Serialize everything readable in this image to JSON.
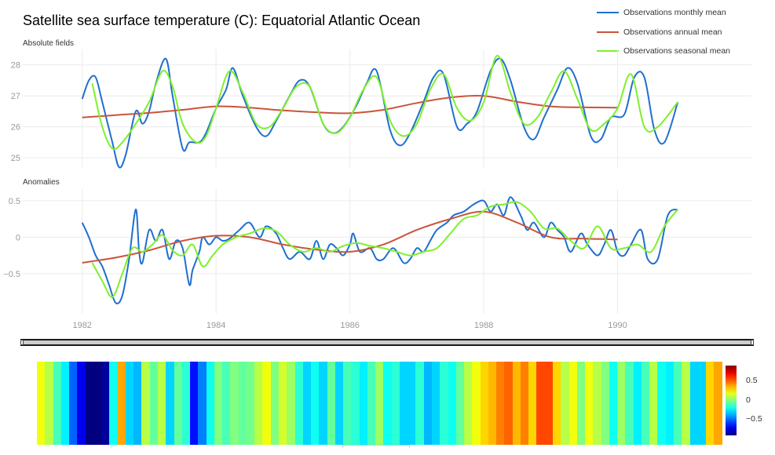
{
  "title": "Satellite sea surface temperature (C): Equatorial Atlantic Ocean",
  "colors": {
    "monthly": "#1f6fcf",
    "annual": "#c9553b",
    "seasonal": "#7ef02c",
    "grid": "#ececec",
    "axis_text": "#999999"
  },
  "legend": {
    "monthly": "Observations monthly mean",
    "annual": "Observations annual mean",
    "seasonal": "Observations seasonal mean"
  },
  "chart_data": [
    {
      "type": "line",
      "title": "Absolute fields",
      "xlabel": "",
      "ylabel": "",
      "xlim": [
        1981.1,
        1992.0
      ],
      "ylim": [
        24.7,
        28.5
      ],
      "yticks": [
        25,
        26,
        27,
        28
      ],
      "grid": true,
      "legend_position": "top-right",
      "series": [
        {
          "name": "Observations monthly mean",
          "x": [
            1982.0,
            1982.1,
            1982.2,
            1982.3,
            1982.45,
            1982.55,
            1982.65,
            1982.8,
            1982.9,
            1983.0,
            1983.1,
            1983.25,
            1983.35,
            1983.5,
            1983.6,
            1983.75,
            1983.85,
            1984.0,
            1984.15,
            1984.25,
            1984.4,
            1984.6,
            1984.75,
            1984.9,
            1985.1,
            1985.25,
            1985.4,
            1985.6,
            1985.75,
            1985.9,
            1986.1,
            1986.25,
            1986.4,
            1986.6,
            1986.75,
            1986.9,
            1987.1,
            1987.25,
            1987.4,
            1987.6,
            1987.75,
            1987.9,
            1988.1,
            1988.25,
            1988.4,
            1988.6,
            1988.75,
            1988.9,
            1989.1,
            1989.25,
            1989.4,
            1989.6,
            1989.75,
            1989.9,
            1990.1,
            1990.25,
            1990.4,
            1990.55,
            1990.7,
            1990.9
          ],
          "y": [
            26.9,
            27.5,
            27.6,
            26.8,
            25.5,
            24.7,
            25.1,
            26.5,
            26.1,
            26.5,
            27.4,
            28.2,
            27.0,
            25.3,
            25.5,
            25.5,
            25.8,
            26.6,
            27.2,
            27.9,
            27.0,
            26.0,
            25.7,
            26.2,
            27.0,
            27.5,
            27.3,
            26.1,
            25.8,
            26.0,
            26.7,
            27.4,
            27.8,
            25.9,
            25.4,
            25.8,
            26.8,
            27.6,
            27.7,
            26.0,
            26.1,
            26.5,
            27.8,
            28.2,
            27.5,
            26.0,
            25.6,
            26.3,
            27.2,
            27.9,
            27.4,
            25.7,
            25.6,
            26.3,
            26.4,
            27.6,
            27.6,
            25.9,
            25.5,
            26.8
          ]
        },
        {
          "name": "Observations annual mean",
          "x": [
            1982.0,
            1982.5,
            1983.0,
            1983.5,
            1984.0,
            1984.5,
            1985.0,
            1985.5,
            1986.0,
            1986.5,
            1987.0,
            1987.5,
            1988.0,
            1988.5,
            1989.0,
            1989.5,
            1990.0
          ],
          "y": [
            26.3,
            26.38,
            26.45,
            26.55,
            26.66,
            26.62,
            26.53,
            26.47,
            26.44,
            26.55,
            26.77,
            26.95,
            27.0,
            26.81,
            26.66,
            26.63,
            26.62
          ]
        },
        {
          "name": "Observations seasonal mean",
          "x": [
            1982.15,
            1982.3,
            1982.45,
            1982.6,
            1982.8,
            1983.0,
            1983.2,
            1983.35,
            1983.5,
            1983.7,
            1983.85,
            1984.0,
            1984.2,
            1984.4,
            1984.6,
            1984.8,
            1985.0,
            1985.2,
            1985.4,
            1985.6,
            1985.8,
            1986.0,
            1986.2,
            1986.4,
            1986.6,
            1986.8,
            1987.0,
            1987.2,
            1987.4,
            1987.6,
            1987.8,
            1988.0,
            1988.2,
            1988.4,
            1988.6,
            1988.8,
            1989.0,
            1989.2,
            1989.4,
            1989.6,
            1989.8,
            1990.0,
            1990.2,
            1990.4,
            1990.6,
            1990.9
          ],
          "y": [
            27.4,
            26.0,
            25.3,
            25.5,
            26.1,
            26.8,
            27.8,
            27.3,
            26.1,
            25.5,
            25.7,
            26.6,
            27.8,
            27.1,
            26.1,
            26.0,
            26.6,
            27.3,
            27.3,
            26.1,
            25.8,
            26.3,
            27.2,
            27.6,
            26.2,
            25.7,
            26.1,
            27.2,
            27.7,
            26.6,
            26.2,
            26.8,
            28.3,
            27.1,
            26.1,
            26.3,
            27.1,
            27.8,
            26.9,
            25.9,
            26.1,
            26.6,
            27.7,
            26.0,
            26.0,
            26.8
          ]
        }
      ]
    },
    {
      "type": "line",
      "title": "Anomalies",
      "xlabel": "",
      "ylabel": "",
      "xlim": [
        1981.1,
        1992.0
      ],
      "ylim": [
        -1.05,
        0.66
      ],
      "yticks": [
        -0.5,
        0,
        0.5
      ],
      "ytick_labels": [
        "−0.5",
        "0",
        "0.5"
      ],
      "xticks": [
        1982,
        1984,
        1986,
        1988,
        1990
      ],
      "grid": true,
      "series": [
        {
          "name": "Observations monthly mean",
          "x": [
            1982.0,
            1982.1,
            1982.2,
            1982.3,
            1982.4,
            1982.5,
            1982.6,
            1982.7,
            1982.8,
            1982.85,
            1982.9,
            1983.0,
            1983.1,
            1983.2,
            1983.3,
            1983.4,
            1983.5,
            1983.6,
            1983.65,
            1983.75,
            1983.8,
            1983.9,
            1984.0,
            1984.1,
            1984.2,
            1984.35,
            1984.5,
            1984.65,
            1984.75,
            1984.9,
            1985.0,
            1985.1,
            1985.25,
            1985.4,
            1985.5,
            1985.6,
            1985.7,
            1985.8,
            1985.9,
            1986.0,
            1986.05,
            1986.15,
            1986.3,
            1986.4,
            1986.5,
            1986.65,
            1986.8,
            1986.9,
            1987.0,
            1987.1,
            1987.2,
            1987.3,
            1987.45,
            1987.55,
            1987.7,
            1987.85,
            1988.0,
            1988.1,
            1988.2,
            1988.3,
            1988.4,
            1988.55,
            1988.65,
            1988.75,
            1988.9,
            1989.0,
            1989.1,
            1989.2,
            1989.3,
            1989.45,
            1989.55,
            1989.7,
            1989.8,
            1989.9,
            1990.0,
            1990.1,
            1990.2,
            1990.35,
            1990.45,
            1990.6,
            1990.75,
            1990.9
          ],
          "y": [
            0.2,
            0.0,
            -0.25,
            -0.4,
            -0.65,
            -0.9,
            -0.8,
            -0.3,
            0.38,
            -0.2,
            -0.35,
            0.1,
            -0.05,
            0.1,
            -0.3,
            -0.05,
            -0.15,
            -0.65,
            -0.45,
            -0.2,
            0.0,
            -0.1,
            0.0,
            -0.05,
            -0.02,
            0.1,
            0.2,
            0.0,
            0.15,
            0.05,
            -0.15,
            -0.3,
            -0.2,
            -0.3,
            -0.05,
            -0.3,
            -0.1,
            -0.15,
            -0.25,
            -0.1,
            0.05,
            -0.2,
            -0.15,
            -0.3,
            -0.3,
            -0.15,
            -0.35,
            -0.3,
            -0.15,
            -0.2,
            -0.05,
            0.1,
            0.2,
            0.3,
            0.35,
            0.45,
            0.5,
            0.35,
            0.45,
            0.3,
            0.55,
            0.3,
            0.1,
            0.2,
            0.0,
            0.2,
            0.1,
            0.0,
            -0.2,
            0.05,
            -0.1,
            -0.25,
            -0.1,
            0.1,
            -0.2,
            -0.25,
            -0.1,
            0.1,
            -0.3,
            -0.3,
            0.3,
            0.38
          ]
        },
        {
          "name": "Observations annual mean",
          "x": [
            1982.0,
            1982.5,
            1983.0,
            1983.5,
            1984.0,
            1984.5,
            1985.0,
            1985.5,
            1986.0,
            1986.5,
            1987.0,
            1987.5,
            1988.0,
            1988.5,
            1989.0,
            1989.5,
            1990.0
          ],
          "y": [
            -0.35,
            -0.28,
            -0.18,
            -0.05,
            0.02,
            0.0,
            -0.1,
            -0.17,
            -0.2,
            -0.1,
            0.1,
            0.25,
            0.35,
            0.2,
            0.0,
            -0.02,
            -0.03
          ]
        },
        {
          "name": "Observations seasonal mean",
          "x": [
            1982.15,
            1982.3,
            1982.45,
            1982.6,
            1982.75,
            1982.9,
            1983.05,
            1983.2,
            1983.35,
            1983.5,
            1983.65,
            1983.8,
            1983.95,
            1984.1,
            1984.3,
            1984.5,
            1984.7,
            1984.9,
            1985.1,
            1985.3,
            1985.5,
            1985.7,
            1985.9,
            1986.1,
            1986.3,
            1986.5,
            1986.7,
            1986.9,
            1987.1,
            1987.3,
            1987.5,
            1987.7,
            1987.9,
            1988.1,
            1988.3,
            1988.5,
            1988.7,
            1988.9,
            1989.1,
            1989.3,
            1989.5,
            1989.7,
            1989.9,
            1990.1,
            1990.3,
            1990.5,
            1990.7,
            1990.9
          ],
          "y": [
            -0.35,
            -0.6,
            -0.82,
            -0.5,
            -0.15,
            -0.2,
            -0.1,
            0.03,
            -0.18,
            -0.25,
            -0.1,
            -0.4,
            -0.25,
            -0.1,
            0.0,
            0.05,
            0.12,
            0.08,
            -0.1,
            -0.2,
            -0.15,
            -0.2,
            -0.12,
            -0.08,
            -0.12,
            -0.15,
            -0.2,
            -0.25,
            -0.2,
            -0.15,
            0.05,
            0.25,
            0.3,
            0.42,
            0.45,
            0.48,
            0.35,
            0.12,
            0.12,
            -0.05,
            -0.15,
            0.15,
            -0.15,
            -0.15,
            -0.1,
            -0.2,
            0.15,
            0.38
          ]
        }
      ]
    },
    {
      "type": "heatmap",
      "title": "",
      "colorbar_ticks": [
        0.5,
        0,
        -0.5
      ],
      "colorbar_tick_labels": [
        "0.5",
        "0",
        "−0.5"
      ],
      "zlim": [
        -0.9,
        0.9
      ],
      "values": [
        0.2,
        0.1,
        -0.1,
        -0.25,
        -0.5,
        -0.7,
        -0.9,
        -0.9,
        -0.85,
        -0.2,
        0.38,
        -0.3,
        -0.35,
        0.1,
        -0.05,
        0.1,
        -0.3,
        -0.05,
        -0.15,
        -0.65,
        -0.45,
        -0.2,
        0.0,
        -0.1,
        0.0,
        -0.05,
        -0.02,
        0.1,
        0.2,
        0.0,
        0.15,
        0.05,
        -0.15,
        -0.3,
        -0.2,
        -0.3,
        -0.05,
        -0.3,
        -0.1,
        -0.15,
        -0.25,
        -0.1,
        0.05,
        -0.2,
        -0.15,
        -0.3,
        -0.3,
        -0.15,
        -0.35,
        -0.3,
        -0.15,
        -0.2,
        -0.05,
        0.1,
        0.2,
        0.3,
        0.35,
        0.45,
        0.5,
        0.35,
        0.45,
        0.3,
        0.55,
        0.55,
        0.3,
        0.1,
        0.2,
        0.0,
        0.2,
        0.1,
        0.0,
        -0.2,
        0.05,
        -0.1,
        -0.25,
        -0.1,
        0.1,
        -0.2,
        -0.25,
        -0.1,
        0.1,
        -0.3,
        -0.3,
        0.3,
        0.38
      ]
    }
  ]
}
